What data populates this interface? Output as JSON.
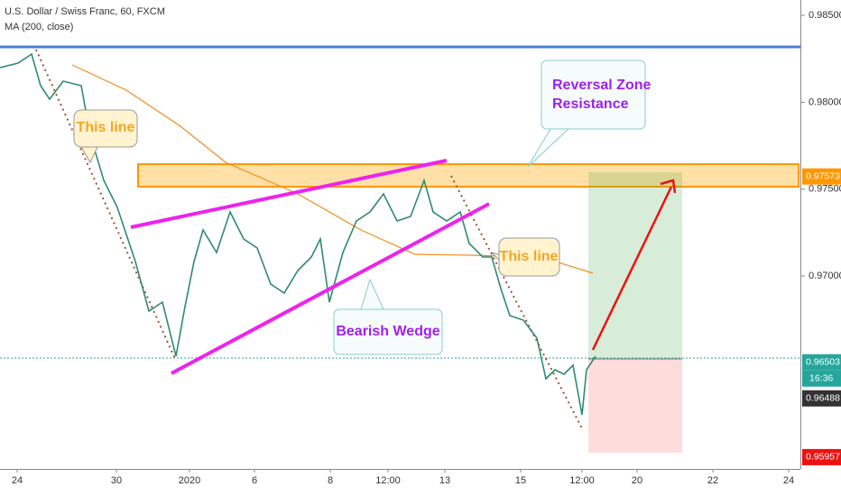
{
  "header": {
    "symbol": "U.S. Dollar / Swiss Franc, 60, FXCM",
    "indicator": "MA (200, close)"
  },
  "price_axis": {
    "ylim": [
      0.95889,
      0.98589
    ],
    "ticks": [
      {
        "value": 0.985,
        "label": "0.98500"
      },
      {
        "value": 0.98,
        "label": "0.98000"
      },
      {
        "value": 0.975,
        "label": "0.97500"
      },
      {
        "value": 0.97,
        "label": "0.97000"
      }
    ]
  },
  "time_axis": {
    "labels": [
      "24",
      "30",
      "2020",
      "6",
      "8",
      "12:00",
      "13",
      "15",
      "12:00",
      "20",
      "22",
      "24"
    ]
  },
  "price_tags": [
    0.97573,
    0.96503,
    0.96488,
    0.95957
  ],
  "countdown": "16:36",
  "annotations": {
    "this_line_left": "This line",
    "this_line_right": "This line",
    "reversal": [
      "Reversal Zone",
      "Resistance"
    ],
    "wedge": "Bearish Wedge"
  }
}
